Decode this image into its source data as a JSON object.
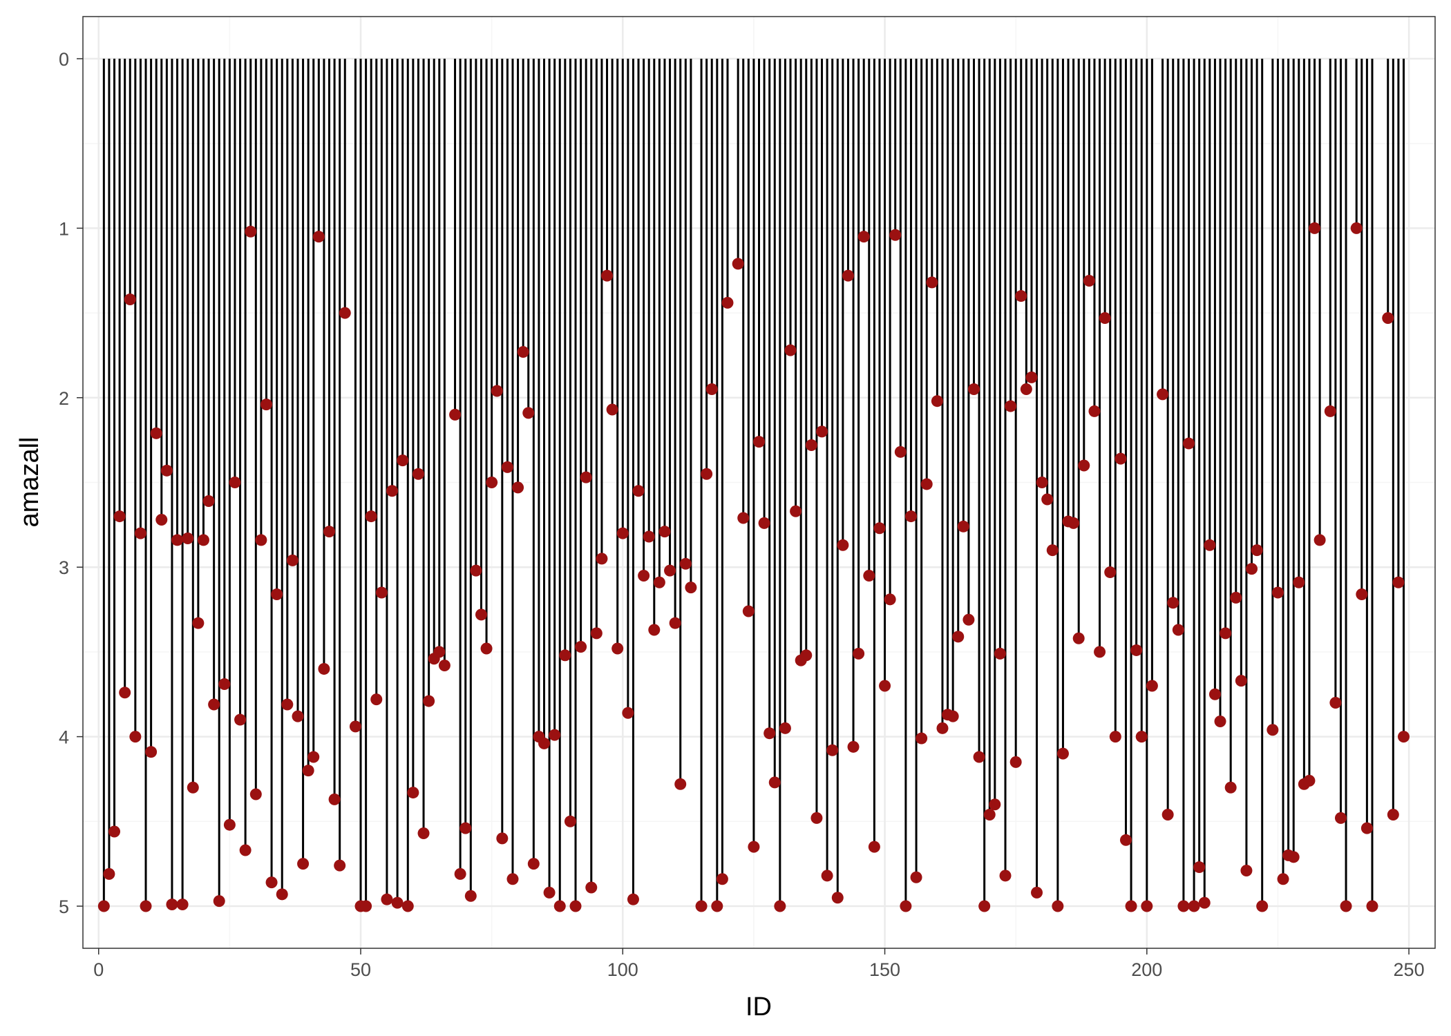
{
  "chart_data": {
    "type": "lollipop",
    "title": "",
    "xlabel": "ID",
    "ylabel": "amazall",
    "xlim": [
      -3,
      255
    ],
    "ylim": [
      0,
      5
    ],
    "y_reversed": true,
    "baseline": 0,
    "grid": true,
    "x_ticks": [
      0,
      50,
      100,
      150,
      200,
      250
    ],
    "y_ticks": [
      0,
      1,
      2,
      3,
      4,
      5
    ],
    "colors": {
      "stem": "#000000",
      "point": "#9b1111",
      "grid_major": "#ebebeb",
      "grid_minor": "#f5f5f5",
      "panel_border": "#333333"
    },
    "points": [
      [
        1,
        5.0
      ],
      [
        2,
        4.81
      ],
      [
        3,
        4.56
      ],
      [
        4,
        2.7
      ],
      [
        5,
        3.74
      ],
      [
        6,
        1.42
      ],
      [
        7,
        4.0
      ],
      [
        8,
        2.8
      ],
      [
        9,
        5.0
      ],
      [
        10,
        4.09
      ],
      [
        11,
        2.21
      ],
      [
        12,
        2.72
      ],
      [
        13,
        2.43
      ],
      [
        14,
        4.99
      ],
      [
        15,
        2.84
      ],
      [
        16,
        4.99
      ],
      [
        17,
        2.83
      ],
      [
        18,
        4.3
      ],
      [
        19,
        3.33
      ],
      [
        20,
        2.84
      ],
      [
        21,
        2.61
      ],
      [
        22,
        3.81
      ],
      [
        23,
        4.97
      ],
      [
        24,
        3.69
      ],
      [
        25,
        4.52
      ],
      [
        26,
        2.5
      ],
      [
        27,
        3.9
      ],
      [
        28,
        4.67
      ],
      [
        29,
        1.02
      ],
      [
        30,
        4.34
      ],
      [
        31,
        2.84
      ],
      [
        32,
        2.04
      ],
      [
        33,
        4.86
      ],
      [
        34,
        3.16
      ],
      [
        35,
        4.93
      ],
      [
        36,
        3.81
      ],
      [
        37,
        2.96
      ],
      [
        38,
        3.88
      ],
      [
        39,
        4.75
      ],
      [
        40,
        4.2
      ],
      [
        41,
        4.12
      ],
      [
        42,
        1.05
      ],
      [
        43,
        3.6
      ],
      [
        44,
        2.79
      ],
      [
        45,
        4.37
      ],
      [
        46,
        4.76
      ],
      [
        47,
        1.5
      ],
      [
        49,
        3.94
      ],
      [
        50,
        5.0
      ],
      [
        51,
        5.0
      ],
      [
        52,
        2.7
      ],
      [
        53,
        3.78
      ],
      [
        54,
        3.15
      ],
      [
        55,
        4.96
      ],
      [
        56,
        2.55
      ],
      [
        57,
        4.98
      ],
      [
        58,
        2.37
      ],
      [
        59,
        5.0
      ],
      [
        60,
        4.33
      ],
      [
        61,
        2.45
      ],
      [
        62,
        4.57
      ],
      [
        63,
        3.79
      ],
      [
        64,
        3.54
      ],
      [
        65,
        3.5
      ],
      [
        66,
        3.58
      ],
      [
        68,
        2.1
      ],
      [
        69,
        4.81
      ],
      [
        70,
        4.54
      ],
      [
        71,
        4.94
      ],
      [
        72,
        3.02
      ],
      [
        73,
        3.28
      ],
      [
        74,
        3.48
      ],
      [
        75,
        2.5
      ],
      [
        76,
        1.96
      ],
      [
        77,
        4.6
      ],
      [
        78,
        2.41
      ],
      [
        79,
        4.84
      ],
      [
        80,
        2.53
      ],
      [
        81,
        1.73
      ],
      [
        82,
        2.09
      ],
      [
        83,
        4.75
      ],
      [
        84,
        4.0
      ],
      [
        85,
        4.04
      ],
      [
        86,
        4.92
      ],
      [
        87,
        3.99
      ],
      [
        88,
        5.0
      ],
      [
        89,
        3.52
      ],
      [
        90,
        4.5
      ],
      [
        91,
        5.0
      ],
      [
        92,
        3.47
      ],
      [
        93,
        2.47
      ],
      [
        94,
        4.89
      ],
      [
        95,
        3.39
      ],
      [
        96,
        2.95
      ],
      [
        97,
        1.28
      ],
      [
        98,
        2.07
      ],
      [
        99,
        3.48
      ],
      [
        100,
        2.8
      ],
      [
        101,
        3.86
      ],
      [
        102,
        4.96
      ],
      [
        103,
        2.55
      ],
      [
        104,
        3.05
      ],
      [
        105,
        2.82
      ],
      [
        106,
        3.37
      ],
      [
        107,
        3.09
      ],
      [
        108,
        2.79
      ],
      [
        109,
        3.02
      ],
      [
        110,
        3.33
      ],
      [
        111,
        4.28
      ],
      [
        112,
        2.98
      ],
      [
        113,
        3.12
      ],
      [
        115,
        5.0
      ],
      [
        116,
        2.45
      ],
      [
        117,
        1.95
      ],
      [
        118,
        5.0
      ],
      [
        119,
        4.84
      ],
      [
        120,
        1.44
      ],
      [
        122,
        1.21
      ],
      [
        123,
        2.71
      ],
      [
        124,
        3.26
      ],
      [
        125,
        4.65
      ],
      [
        126,
        2.26
      ],
      [
        127,
        2.74
      ],
      [
        128,
        3.98
      ],
      [
        129,
        4.27
      ],
      [
        130,
        5.0
      ],
      [
        131,
        3.95
      ],
      [
        132,
        1.72
      ],
      [
        133,
        2.67
      ],
      [
        134,
        3.55
      ],
      [
        135,
        3.52
      ],
      [
        136,
        2.28
      ],
      [
        137,
        4.48
      ],
      [
        138,
        2.2
      ],
      [
        139,
        4.82
      ],
      [
        140,
        4.08
      ],
      [
        141,
        4.95
      ],
      [
        142,
        2.87
      ],
      [
        143,
        1.28
      ],
      [
        144,
        4.06
      ],
      [
        145,
        3.51
      ],
      [
        146,
        1.05
      ],
      [
        147,
        3.05
      ],
      [
        148,
        4.65
      ],
      [
        149,
        2.77
      ],
      [
        150,
        3.7
      ],
      [
        151,
        3.19
      ],
      [
        152,
        1.04
      ],
      [
        153,
        2.32
      ],
      [
        154,
        5.0
      ],
      [
        155,
        2.7
      ],
      [
        156,
        4.83
      ],
      [
        157,
        4.01
      ],
      [
        158,
        2.51
      ],
      [
        159,
        1.32
      ],
      [
        160,
        2.02
      ],
      [
        161,
        3.95
      ],
      [
        162,
        3.87
      ],
      [
        163,
        3.88
      ],
      [
        164,
        3.41
      ],
      [
        165,
        2.76
      ],
      [
        166,
        3.31
      ],
      [
        167,
        1.95
      ],
      [
        168,
        4.12
      ],
      [
        169,
        5.0
      ],
      [
        170,
        4.46
      ],
      [
        171,
        4.4
      ],
      [
        172,
        3.51
      ],
      [
        173,
        4.82
      ],
      [
        174,
        2.05
      ],
      [
        175,
        4.15
      ],
      [
        176,
        1.4
      ],
      [
        177,
        1.95
      ],
      [
        178,
        1.88
      ],
      [
        179,
        4.92
      ],
      [
        180,
        2.5
      ],
      [
        181,
        2.6
      ],
      [
        182,
        2.9
      ],
      [
        183,
        5.0
      ],
      [
        184,
        4.1
      ],
      [
        185,
        2.73
      ],
      [
        186,
        2.74
      ],
      [
        187,
        3.42
      ],
      [
        188,
        2.4
      ],
      [
        189,
        1.31
      ],
      [
        190,
        2.08
      ],
      [
        191,
        3.5
      ],
      [
        192,
        1.53
      ],
      [
        193,
        3.03
      ],
      [
        194,
        4.0
      ],
      [
        195,
        2.36
      ],
      [
        196,
        4.61
      ],
      [
        197,
        5.0
      ],
      [
        198,
        3.49
      ],
      [
        199,
        4.0
      ],
      [
        200,
        5.0
      ],
      [
        201,
        3.7
      ],
      [
        203,
        1.98
      ],
      [
        204,
        4.46
      ],
      [
        205,
        3.21
      ],
      [
        206,
        3.37
      ],
      [
        207,
        5.0
      ],
      [
        208,
        2.27
      ],
      [
        209,
        5.0
      ],
      [
        210,
        4.77
      ],
      [
        211,
        4.98
      ],
      [
        212,
        2.87
      ],
      [
        213,
        3.75
      ],
      [
        214,
        3.91
      ],
      [
        215,
        3.39
      ],
      [
        216,
        4.3
      ],
      [
        217,
        3.18
      ],
      [
        218,
        3.67
      ],
      [
        219,
        4.79
      ],
      [
        220,
        3.01
      ],
      [
        221,
        2.9
      ],
      [
        222,
        5.0
      ],
      [
        224,
        3.96
      ],
      [
        225,
        3.15
      ],
      [
        226,
        4.84
      ],
      [
        227,
        4.7
      ],
      [
        228,
        4.71
      ],
      [
        229,
        3.09
      ],
      [
        230,
        4.28
      ],
      [
        231,
        4.26
      ],
      [
        232,
        1.0
      ],
      [
        233,
        2.84
      ],
      [
        235,
        2.08
      ],
      [
        236,
        3.8
      ],
      [
        237,
        4.48
      ],
      [
        238,
        5.0
      ],
      [
        240,
        1.0
      ],
      [
        241,
        3.16
      ],
      [
        242,
        4.54
      ],
      [
        243,
        5.0
      ],
      [
        246,
        1.53
      ],
      [
        247,
        4.46
      ],
      [
        248,
        3.09
      ],
      [
        249,
        4.0
      ]
    ]
  }
}
